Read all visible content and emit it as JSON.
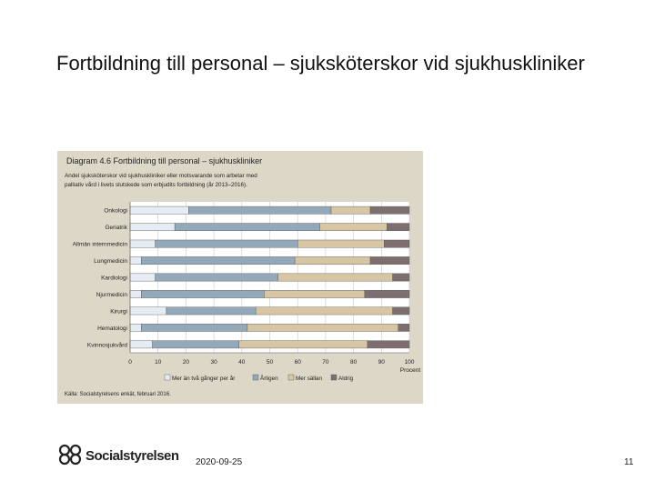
{
  "slide": {
    "title": "Fortbildning till personal – sjuksköterskor vid sjukhuskliniker",
    "date": "2020-09-25",
    "page_number": "11",
    "logo_text": "Socialstyrelsen"
  },
  "colors": {
    "panel_bg": "#dcd7c7",
    "plot_bg": "#ffffff"
  },
  "chart_data": {
    "type": "bar",
    "stacked": true,
    "orientation": "horizontal",
    "title": "Diagram 4.6 Fortbildning till personal – sjukhuskliniker",
    "subtitle": "Andel sjuksköterskor vid sjukhuskliniker eller motsvarande som arbetar med palliativ vård i livets slutskede som erbjudits fortbildning (år 2013–2016).",
    "categories": [
      "Onkologi",
      "Geriatrik",
      "Allmän internmedicin",
      "Lungmedicin",
      "Kardiologi",
      "Njurmedicin",
      "Kirurgi",
      "Hematologi",
      "Kvinnosjukvård"
    ],
    "series": [
      {
        "name": "Mer än två gånger per år",
        "color": "#e6ecf3",
        "values": [
          21,
          16,
          9,
          4,
          9,
          4,
          13,
          4,
          8
        ]
      },
      {
        "name": "Årligen",
        "color": "#93a8b9",
        "values": [
          51,
          52,
          51,
          55,
          44,
          44,
          32,
          38,
          31
        ]
      },
      {
        "name": "Mer sällan",
        "color": "#d6c6a4",
        "values": [
          14,
          24,
          31,
          27,
          41,
          36,
          49,
          54,
          46
        ]
      },
      {
        "name": "Aldrig",
        "color": "#7d6e6f",
        "values": [
          14,
          8,
          9,
          14,
          6,
          16,
          6,
          4,
          15
        ]
      }
    ],
    "x_ticks": [
      "0",
      "10",
      "20",
      "30",
      "40",
      "50",
      "60",
      "70",
      "80",
      "90",
      "100"
    ],
    "xlabel": "Procent",
    "xlim": [
      0,
      100
    ],
    "grid": true,
    "legend_position": "bottom",
    "source": "Källa: Socialstyrelsens enkät, februari 2016."
  }
}
